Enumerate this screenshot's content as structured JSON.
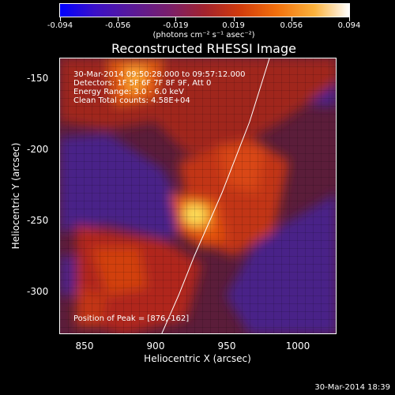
{
  "colorbar": {
    "ticks": [
      "-0.094",
      "-0.056",
      "-0.019",
      "0.019",
      "0.056",
      "0.094"
    ],
    "units": "(photons cm⁻² s⁻¹ asec⁻²)"
  },
  "title": "Reconstructed RHESSI Image",
  "annotations": {
    "time_range": "30-Mar-2014 09:50:28.000 to 09:57:12.000",
    "detectors": "Detectors: 1F 5F 6F 7F 8F 9F, Att 0",
    "energy_range": "Energy Range: 3.0 - 6.0 keV",
    "clean": "Clean     Total counts: 4.58E+04",
    "peak": "Position of Peak = [876,-162]"
  },
  "axes": {
    "xlabel": "Heliocentric X (arcsec)",
    "ylabel": "Heliocentric Y (arcsec)",
    "xticks": [
      "850",
      "900",
      "950",
      "1000"
    ],
    "yticks": [
      "-150",
      "-200",
      "-250",
      "-300"
    ]
  },
  "timestamp": "30-Mar-2014 18:39",
  "colors": {
    "background": "#000000",
    "limb_line": "#ffffff",
    "colormap": [
      "#0000ff",
      "#5a1a98",
      "#a2232e",
      "#f2700c",
      "#ffffff"
    ]
  }
}
